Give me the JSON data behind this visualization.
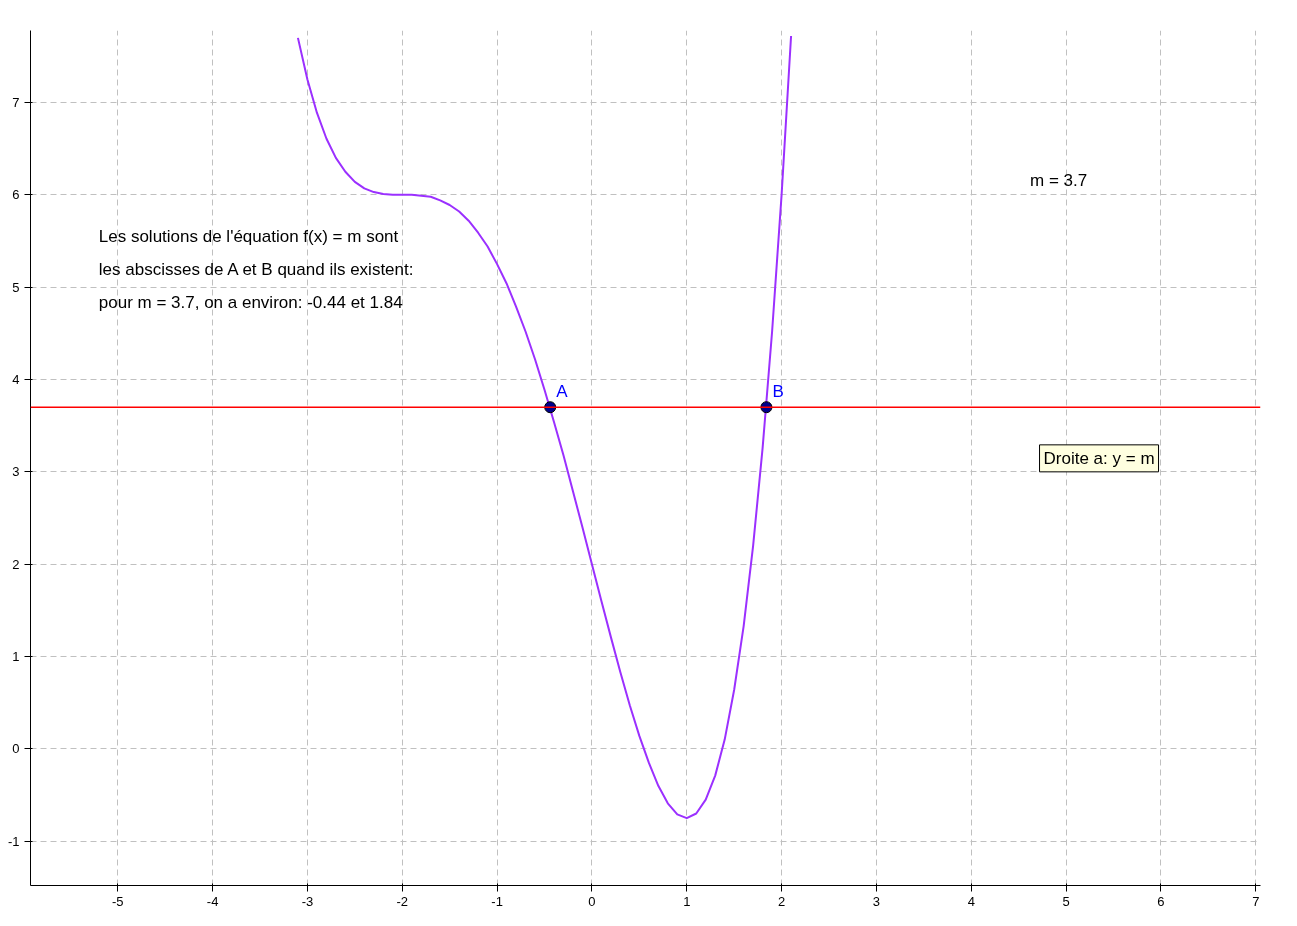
{
  "chart_data": {
    "type": "line",
    "x": [
      -3.1,
      -3.0,
      -2.9,
      -2.8,
      -2.7,
      -2.6,
      -2.5,
      -2.4,
      -2.3,
      -2.2,
      -2.1,
      -2.0,
      -1.9,
      -1.8,
      -1.7,
      -1.6,
      -1.5,
      -1.4,
      -1.3,
      -1.2,
      -1.1,
      -1.0,
      -0.9,
      -0.8,
      -0.7,
      -0.6,
      -0.5,
      -0.4,
      -0.3,
      -0.2,
      -0.1,
      0.0,
      0.1,
      0.2,
      0.3,
      0.4,
      0.5,
      0.6,
      0.7,
      0.8,
      0.9,
      1.0,
      1.1,
      1.2,
      1.3,
      1.4,
      1.5,
      1.6,
      1.7,
      1.8,
      1.9,
      2.0,
      2.1
    ],
    "series": [
      {
        "color": "#9b30ff",
        "values": [
          7.7,
          7.25,
          6.89,
          6.61,
          6.4,
          6.25,
          6.14,
          6.07,
          6.03,
          6.01,
          6.0,
          6.0,
          6.0,
          5.99,
          5.98,
          5.94,
          5.89,
          5.82,
          5.72,
          5.59,
          5.44,
          5.25,
          5.04,
          4.79,
          4.52,
          4.22,
          3.89,
          3.54,
          3.18,
          2.79,
          2.4,
          2.0,
          1.6,
          1.21,
          0.83,
          0.47,
          0.14,
          -0.15,
          -0.4,
          -0.59,
          -0.71,
          -0.75,
          -0.7,
          -0.55,
          -0.29,
          0.1,
          0.64,
          1.33,
          2.2,
          3.26,
          4.52,
          6.0,
          7.72
        ]
      },
      {
        "type": "scatter",
        "color": "#00008b",
        "marker": "circle",
        "x": [
          -0.44,
          1.84
        ],
        "values": [
          3.7,
          3.7
        ]
      }
    ],
    "ref_lines": [
      {
        "axis": "y",
        "value": 3.7,
        "color": "#ff0000",
        "line_style": "solid"
      }
    ],
    "annotations": [
      {
        "text": "A",
        "x": -0.44,
        "y": 3.7
      },
      {
        "text": "B",
        "x": 1.84,
        "y": 3.7
      },
      "Les solutions de l'équation f(x) = m sont",
      "les abscisses de A et B quand ils existent:",
      "pour m = 3.7, on a environ:  -0.44 et 1.84",
      "Droite a: y = m",
      "m = 3.7"
    ],
    "xlim": [
      -5.92,
      7.05
    ],
    "ylim": [
      -1.48,
      7.78
    ],
    "xticks": [
      -5,
      -4,
      -3,
      -2,
      -1,
      0,
      1,
      2,
      3,
      4,
      5,
      6,
      7
    ],
    "yticks": [
      -1,
      0,
      1,
      2,
      3,
      4,
      5,
      6,
      7
    ],
    "grid": true,
    "line_style": "solid",
    "marker": "none"
  }
}
